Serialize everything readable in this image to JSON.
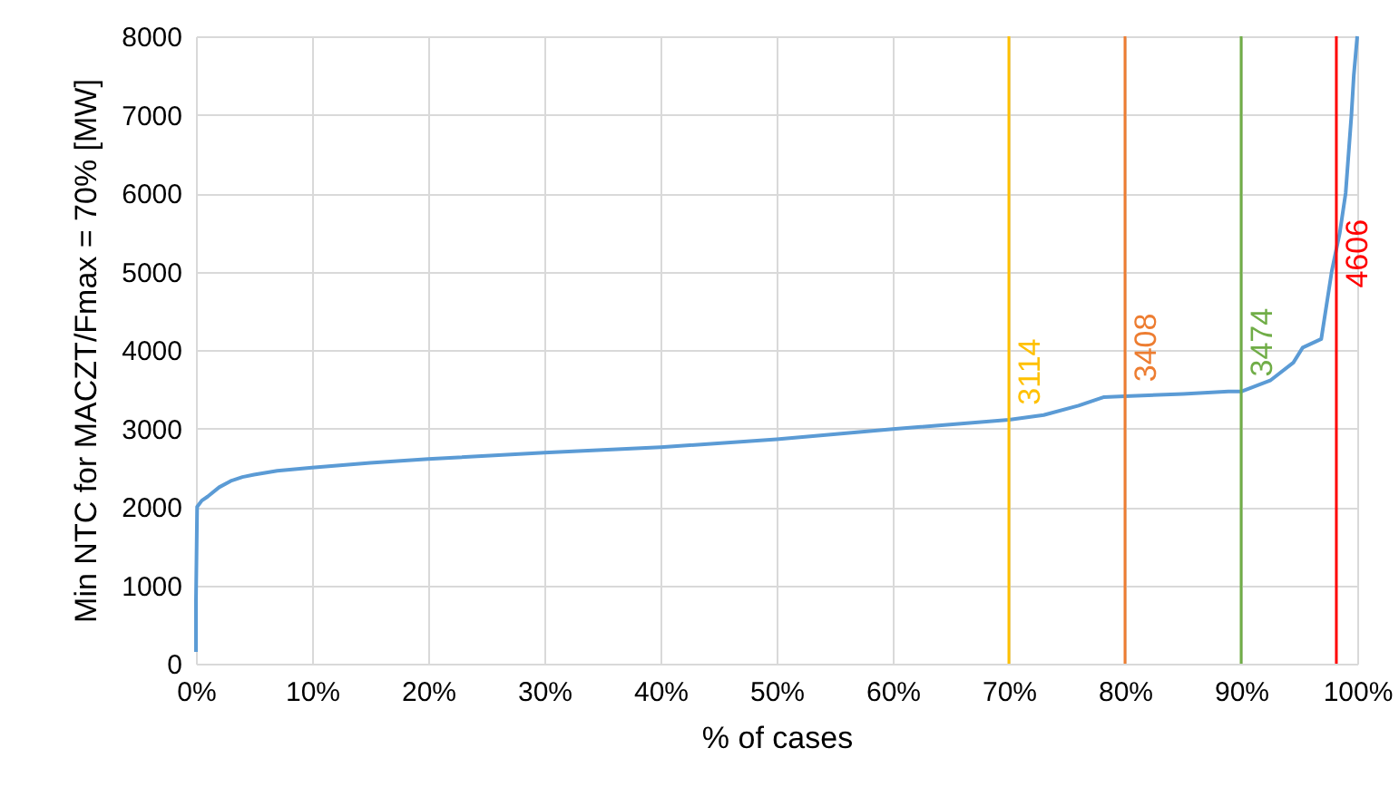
{
  "chart_data": {
    "type": "line",
    "xlabel": "% of cases",
    "ylabel": "Min NTC for MACZT/Fmax = 70% [MW]",
    "x": [
      0,
      0,
      0.1,
      0.5,
      1,
      2,
      3,
      4,
      5,
      7,
      10,
      15,
      20,
      30,
      40,
      50,
      60,
      70,
      73,
      76,
      78.2,
      80,
      85,
      88.9,
      90,
      92.5,
      94.5,
      95.3,
      96.9,
      97.8,
      98.5,
      99,
      99.5,
      99.7,
      100
    ],
    "series": [
      {
        "color": "#5b9bd5",
        "values": [
          150,
          800,
          2000,
          2080,
          2130,
          2250,
          2330,
          2380,
          2410,
          2460,
          2500,
          2560,
          2610,
          2690,
          2760,
          2860,
          2990,
          3110,
          3170,
          3290,
          3400,
          3410,
          3440,
          3470,
          3470,
          3610,
          3840,
          4030,
          4140,
          5000,
          5500,
          6000,
          7000,
          7500,
          8000
        ]
      }
    ],
    "xlim": [
      0,
      100
    ],
    "ylim": [
      0,
      8000
    ],
    "xticks": [
      {
        "value": 0,
        "label": "0%"
      },
      {
        "value": 10,
        "label": "10%"
      },
      {
        "value": 20,
        "label": "20%"
      },
      {
        "value": 30,
        "label": "30%"
      },
      {
        "value": 40,
        "label": "40%"
      },
      {
        "value": 50,
        "label": "50%"
      },
      {
        "value": 60,
        "label": "60%"
      },
      {
        "value": 70,
        "label": "70%"
      },
      {
        "value": 80,
        "label": "80%"
      },
      {
        "value": 90,
        "label": "90%"
      },
      {
        "value": 100,
        "label": "100%"
      }
    ],
    "yticks": [
      0,
      1000,
      2000,
      3000,
      4000,
      5000,
      6000,
      7000,
      8000
    ],
    "ref_lines": [
      {
        "axis": "x",
        "value": 70,
        "color": "#ffc000"
      },
      {
        "axis": "x",
        "value": 80,
        "color": "#ed7d31"
      },
      {
        "axis": "x",
        "value": 90,
        "color": "#70ad47"
      },
      {
        "axis": "x",
        "value": 98.2,
        "color": "#ff0000"
      }
    ],
    "annotations": [
      {
        "text": "3114",
        "x": 70,
        "y": 3114
      },
      {
        "text": "3408",
        "x": 80,
        "y": 3408
      },
      {
        "text": "3474",
        "x": 90,
        "y": 3474
      },
      {
        "text": "4606",
        "x": 98.2,
        "y": 4606
      }
    ],
    "grid": true
  }
}
